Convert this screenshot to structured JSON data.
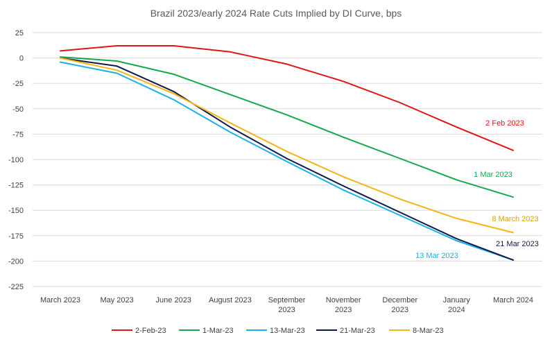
{
  "chart_data": {
    "type": "line",
    "title": "Brazil 2023/early 2024 Rate Cuts Implied by DI Curve, bps",
    "xlabel": "",
    "ylabel": "",
    "categories": [
      "March 2023",
      "May 2023",
      "June 2023",
      "August 2023",
      "September 2023",
      "November 2023",
      "December 2023",
      "January 2024",
      "March 2024"
    ],
    "ylim": [
      -225,
      25
    ],
    "yticks": [
      25,
      0,
      -25,
      -50,
      -75,
      -100,
      -125,
      -150,
      -175,
      -200,
      -225
    ],
    "grid": true,
    "legend_position": "bottom",
    "series": [
      {
        "name": "2-Feb-23",
        "color": "#e01414",
        "values": [
          7,
          12,
          12,
          6,
          -6,
          -23,
          -44,
          -68,
          -91
        ]
      },
      {
        "name": "1-Mar-23",
        "color": "#14a84a",
        "values": [
          1,
          -3,
          -16,
          -36,
          -56,
          -78,
          -99,
          -120,
          -137
        ]
      },
      {
        "name": "13-Mar-23",
        "color": "#1ab0e6",
        "values": [
          -4,
          -15,
          -41,
          -73,
          -102,
          -130,
          -155,
          -180,
          -199
        ]
      },
      {
        "name": "21-Mar-23",
        "color": "#0c1a4a",
        "values": [
          0,
          -8,
          -33,
          -68,
          -99,
          -126,
          -152,
          -178,
          -199
        ]
      },
      {
        "name": "8-Mar-23",
        "color": "#f5b414",
        "values": [
          0,
          -12,
          -35,
          -64,
          -92,
          -117,
          -139,
          -158,
          -172
        ]
      }
    ],
    "annotations": [
      {
        "text": "2 Feb 2023",
        "color": "#e01414",
        "series": 0
      },
      {
        "text": "1 Mar 2023",
        "color": "#14a84a",
        "series": 1
      },
      {
        "text": "8 March 2023",
        "color": "#d9a010",
        "series": 4
      },
      {
        "text": "21 Mar 2023",
        "color": "#0c1a4a",
        "series": 3
      },
      {
        "text": "13 Mar 2023",
        "color": "#1ab0e6",
        "series": 2
      }
    ]
  }
}
